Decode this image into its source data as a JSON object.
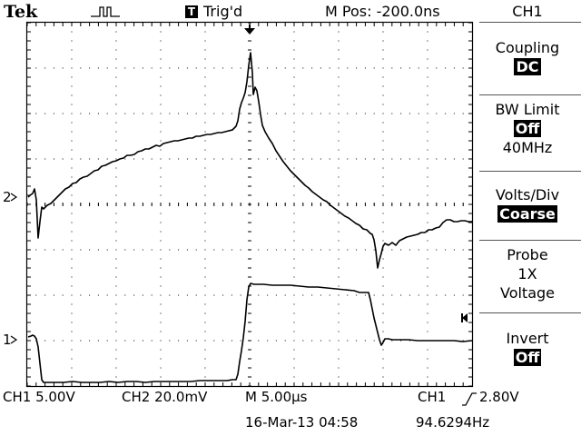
{
  "header": {
    "brand": "Tek",
    "trigger_state": "Trig'd",
    "trigger_icon_label": "T",
    "position": "M Pos: -200.0ns",
    "menu_channel": "CH1"
  },
  "menu": {
    "coupling": {
      "title": "Coupling",
      "value": "DC"
    },
    "bw_limit": {
      "title": "BW Limit",
      "value": "Off",
      "sub": "40MHz"
    },
    "volts_div": {
      "title": "Volts/Div",
      "value": "Coarse"
    },
    "probe": {
      "title": "Probe",
      "line2": "1X",
      "line3": "Voltage"
    },
    "invert": {
      "title": "Invert",
      "value": "Off"
    }
  },
  "status": {
    "ch1_scale": "CH1  5.00V",
    "ch2_scale": "CH2  20.0mV",
    "time_scale": "M 5.00µs",
    "trigger_src": "CH1",
    "trigger_level": "2.80V",
    "datetime": "16-Mar-13 04:58",
    "frequency": "94.6294Hz"
  },
  "markers": {
    "ch2_marker": "2",
    "ch1_marker": "1"
  },
  "colors": {
    "background": "#ffffff",
    "trace": "#000000",
    "grid": "#000000",
    "inverse_bg": "#000000"
  },
  "icons": [
    "acquire-waveform-icon",
    "trigger-icon",
    "trigger-position-arrow-icon",
    "trigger-level-arrow-icon",
    "rising-edge-icon"
  ]
}
